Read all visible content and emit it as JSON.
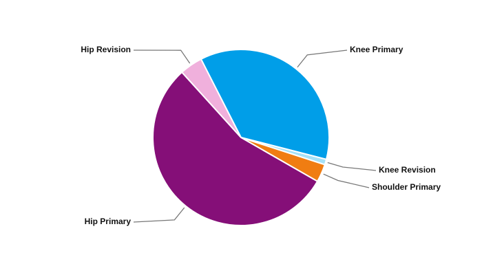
{
  "chart_data": {
    "type": "pie",
    "categories": [
      "Knee Primary",
      "Knee Revision",
      "Shoulder Primary",
      "Hip Primary",
      "Hip Revision"
    ],
    "values": [
      36.5,
      1,
      3.3,
      55,
      4.2
    ],
    "colors": [
      "#009ee8",
      "#a6e1f7",
      "#f07d12",
      "#850f78",
      "#f0b0dc"
    ]
  }
}
